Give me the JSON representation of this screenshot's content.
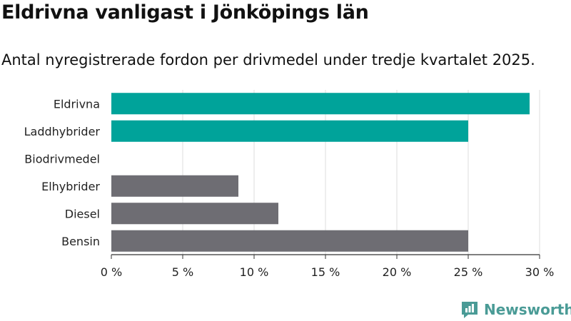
{
  "header": {
    "title": "Eldrivna vanligast i Jönköpings län",
    "subtitle": "Antal nyregistrerade fordon per drivmedel under tredje kvartalet 2025."
  },
  "chart_data": {
    "type": "bar",
    "orientation": "horizontal",
    "categories": [
      "Eldrivna",
      "Laddhybrider",
      "Biodrivmedel",
      "Elhybrider",
      "Diesel",
      "Bensin"
    ],
    "values": [
      29.3,
      25.0,
      0,
      8.9,
      11.7,
      25.0
    ],
    "bar_colors": [
      "#00a39a",
      "#00a39a",
      "#00a39a",
      "#6e6d73",
      "#6e6d73",
      "#6e6d73"
    ],
    "xlim": [
      0,
      30
    ],
    "xticks": [
      0,
      5,
      10,
      15,
      20,
      25,
      30
    ],
    "xtick_labels": [
      "0 %",
      "5 %",
      "10 %",
      "15 %",
      "20 %",
      "25 %",
      "30 %"
    ],
    "grid": true,
    "legend": "none"
  },
  "brand": {
    "name": "Newsworthy",
    "icon": "newsworthy-logo-icon",
    "color": "#4a9b96"
  }
}
